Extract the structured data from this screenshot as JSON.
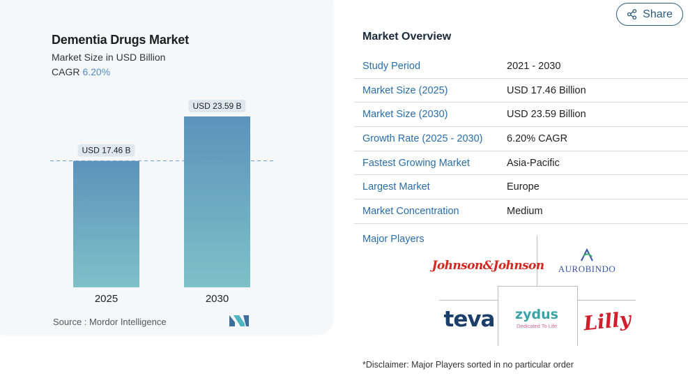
{
  "chart": {
    "title": "Dementia Drugs Market",
    "subtitle": "Market Size in USD Billion",
    "cagr_label": "CAGR",
    "cagr_value": "6.20%",
    "source": "Source :  Mordor Intelligence"
  },
  "chart_data": {
    "type": "bar",
    "title": "Dementia Drugs Market",
    "subtitle": "Market Size in USD Billion",
    "categories": [
      "2025",
      "2030"
    ],
    "values": [
      17.46,
      23.59
    ],
    "data_labels": [
      "USD 17.46 B",
      "USD 23.59 B"
    ],
    "ylabel": "",
    "xlabel": "",
    "ylim": [
      0,
      23.59
    ],
    "grid": false,
    "reference_line": 17.46,
    "bar_gradient": [
      "#5b93bb",
      "#7ec1c8"
    ]
  },
  "share": {
    "label": "Share",
    "icon": "share-icon"
  },
  "overview": {
    "title": "Market Overview",
    "rows": [
      {
        "label": "Study Period",
        "value": "2021 - 2030"
      },
      {
        "label": "Market Size (2025)",
        "value": "USD 17.46 Billion"
      },
      {
        "label": "Market Size (2030)",
        "value": "USD 23.59 Billion"
      },
      {
        "label": "Growth Rate (2025 - 2030)",
        "value": "6.20% CAGR"
      },
      {
        "label": "Fastest Growing Market",
        "value": "Asia-Pacific"
      },
      {
        "label": "Largest Market",
        "value": "Europe"
      },
      {
        "label": "Market Concentration",
        "value": "Medium"
      }
    ],
    "major_players_label": "Major Players",
    "players": {
      "jj": "Johnson&Johnson",
      "aurobindo": "AUROBINDO",
      "teva": "teva",
      "zydus": "zydus",
      "zydus_tagline": "Dedicated To Life",
      "lilly": "Lilly"
    },
    "disclaimer": "*Disclaimer: Major Players sorted in no particular order"
  },
  "colors": {
    "accent": "#2a6ea8",
    "cagr": "#4d8dbf",
    "share_border": "#2b5a7a"
  }
}
